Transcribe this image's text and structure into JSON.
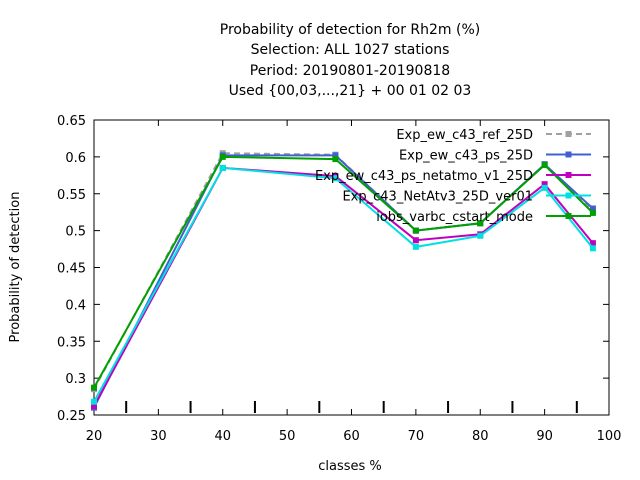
{
  "chart_data": {
    "type": "line",
    "title_lines": [
      "Probability of detection  for Rh2m (%)",
      "Selection: ALL    1027 stations",
      "Period: 20190801-20190818",
      "Used {00,03,...,21} + 00 01 02 03"
    ],
    "xlabel": "classes %",
    "ylabel": "Probability of detection",
    "xlim": [
      20,
      100
    ],
    "ylim": [
      0.25,
      0.65
    ],
    "xticks": [
      20,
      30,
      40,
      50,
      60,
      70,
      80,
      90,
      100
    ],
    "yticks": [
      0.25,
      0.3,
      0.35,
      0.4,
      0.45,
      0.5,
      0.55,
      0.6,
      0.65
    ],
    "ytick_labels": [
      "0.25",
      "0.3",
      "0.35",
      "0.4",
      "0.45",
      "0.5",
      "0.55",
      "0.6",
      "0.65"
    ],
    "x_extra_ticks": [
      25,
      35,
      45,
      55,
      65,
      75,
      85,
      95
    ],
    "grid": false,
    "legend_position": "top-right",
    "x": [
      20,
      40,
      57.5,
      70,
      80,
      90,
      97.5
    ],
    "series": [
      {
        "name": "Exp_ew_c43_ref_25D",
        "color": "#a0a0a0",
        "dashed": true,
        "values": [
          0.285,
          0.605,
          0.603,
          0.5,
          0.51,
          0.59,
          0.527
        ]
      },
      {
        "name": "Exp_ew_c43_ps_25D",
        "color": "#4060d0",
        "dashed": false,
        "values": [
          0.26,
          0.602,
          0.602,
          0.5,
          0.51,
          0.59,
          0.53
        ]
      },
      {
        "name": "Exp_ew_c43_ps_netatmo_v1_25D",
        "color": "#c000c0",
        "dashed": false,
        "values": [
          0.262,
          0.585,
          0.574,
          0.487,
          0.495,
          0.563,
          0.483
        ]
      },
      {
        "name": "Exp_c43_NetAtv3_25D_ver01",
        "color": "#00e0e0",
        "dashed": false,
        "values": [
          0.268,
          0.585,
          0.571,
          0.478,
          0.493,
          0.558,
          0.476
        ]
      },
      {
        "name": "iobs_varbc_cstart_mode",
        "color": "#00a000",
        "dashed": false,
        "values": [
          0.287,
          0.6,
          0.597,
          0.5,
          0.51,
          0.589,
          0.524
        ]
      }
    ]
  }
}
